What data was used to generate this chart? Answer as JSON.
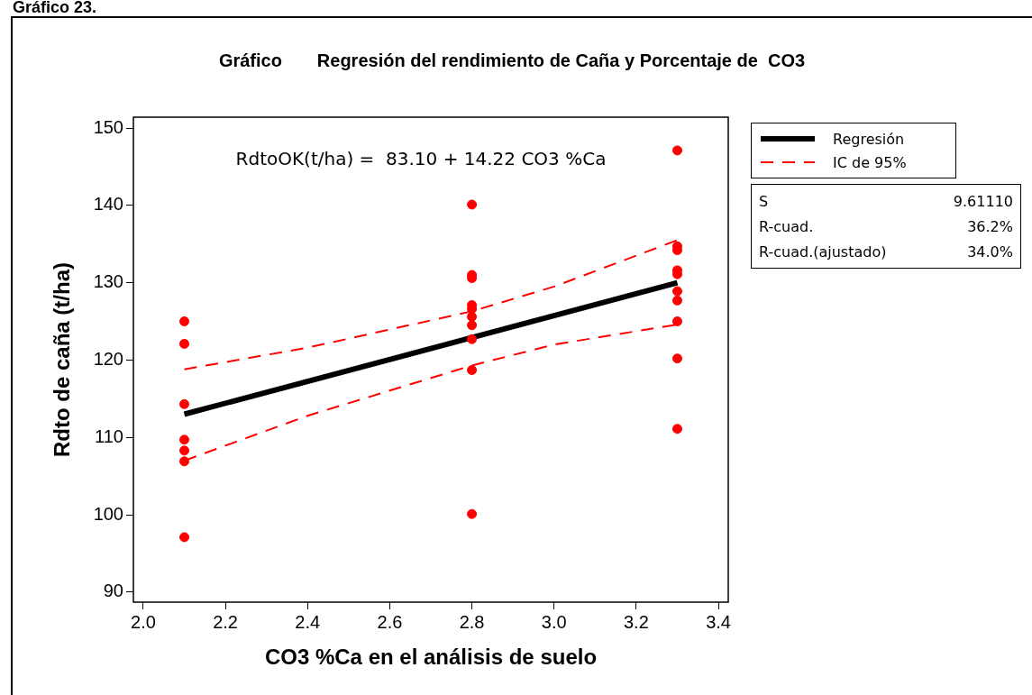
{
  "chart_data": {
    "type": "scatter",
    "title": "Gráfico       Regresión del rendimiento de Caña y Porcentaje de  CO3",
    "xlabel": "CO3 %Ca en el análisis de suelo",
    "ylabel": "Rdto de caña (t/ha)",
    "annotations": [
      "RdtoOK(t/ha) =  83.10 + 14.22 CO3 %Ca",
      "Gráfico 23.",
      "S",
      "9.61110",
      "R-cuad.",
      "36.2%",
      "R-cuad.(ajustado)",
      "34.0%"
    ],
    "xlim": [
      1.976,
      3.424
    ],
    "ylim": [
      88.7,
      151.4
    ],
    "xticks": [
      {
        "value": 2,
        "label": "2.0"
      },
      {
        "value": 2.2,
        "label": "2.2"
      },
      {
        "value": 2.4,
        "label": "2.4"
      },
      {
        "value": 2.6,
        "label": "2.6"
      },
      {
        "value": 2.8,
        "label": "2.8"
      },
      {
        "value": 3,
        "label": "3.0"
      },
      {
        "value": 3.2,
        "label": "3.2"
      },
      {
        "value": 3.4,
        "label": "3.4"
      }
    ],
    "yticks": [
      90,
      100,
      110,
      120,
      130,
      140,
      150
    ],
    "grid": false,
    "legend": "right",
    "series": [
      {
        "marker": "circle",
        "color": "#ff0000",
        "x": [
          2.1,
          2.1,
          2.1,
          2.1,
          2.1,
          2.1,
          2.1,
          2.8,
          2.8,
          2.8,
          2.8,
          2.8,
          2.8,
          2.8,
          2.8,
          2.8,
          2.8,
          3.3,
          3.3,
          3.3,
          3.3,
          3.3,
          3.3,
          3.3,
          3.3,
          3.3,
          3.3
        ],
        "values": [
          125.0,
          122.1,
          114.3,
          109.7,
          108.3,
          106.9,
          97.1,
          140.1,
          131.0,
          130.6,
          127.1,
          126.6,
          125.6,
          124.5,
          122.7,
          118.7,
          100.1,
          147.1,
          134.7,
          134.2,
          131.6,
          131.1,
          128.9,
          127.7,
          125.0,
          120.2,
          111.1
        ]
      },
      {
        "type": "line",
        "name": "Regresión",
        "color": "#000000",
        "line_style": "solid",
        "x": [
          2.1,
          3.3
        ],
        "values": [
          113.0,
          130.0
        ]
      },
      {
        "type": "line",
        "name": "IC de 95%",
        "color": "#ff0000",
        "line_style": "dashed",
        "x": [
          2.1,
          2.4,
          2.8,
          3.0,
          3.3
        ],
        "values": [
          118.8,
          121.6,
          126.3,
          129.5,
          135.5
        ]
      },
      {
        "type": "line",
        "color": "#ff0000",
        "line_style": "dashed",
        "x": [
          2.1,
          2.4,
          2.8,
          3.0,
          3.3
        ],
        "values": [
          107.0,
          112.8,
          119.3,
          122.0,
          124.6
        ]
      }
    ]
  }
}
